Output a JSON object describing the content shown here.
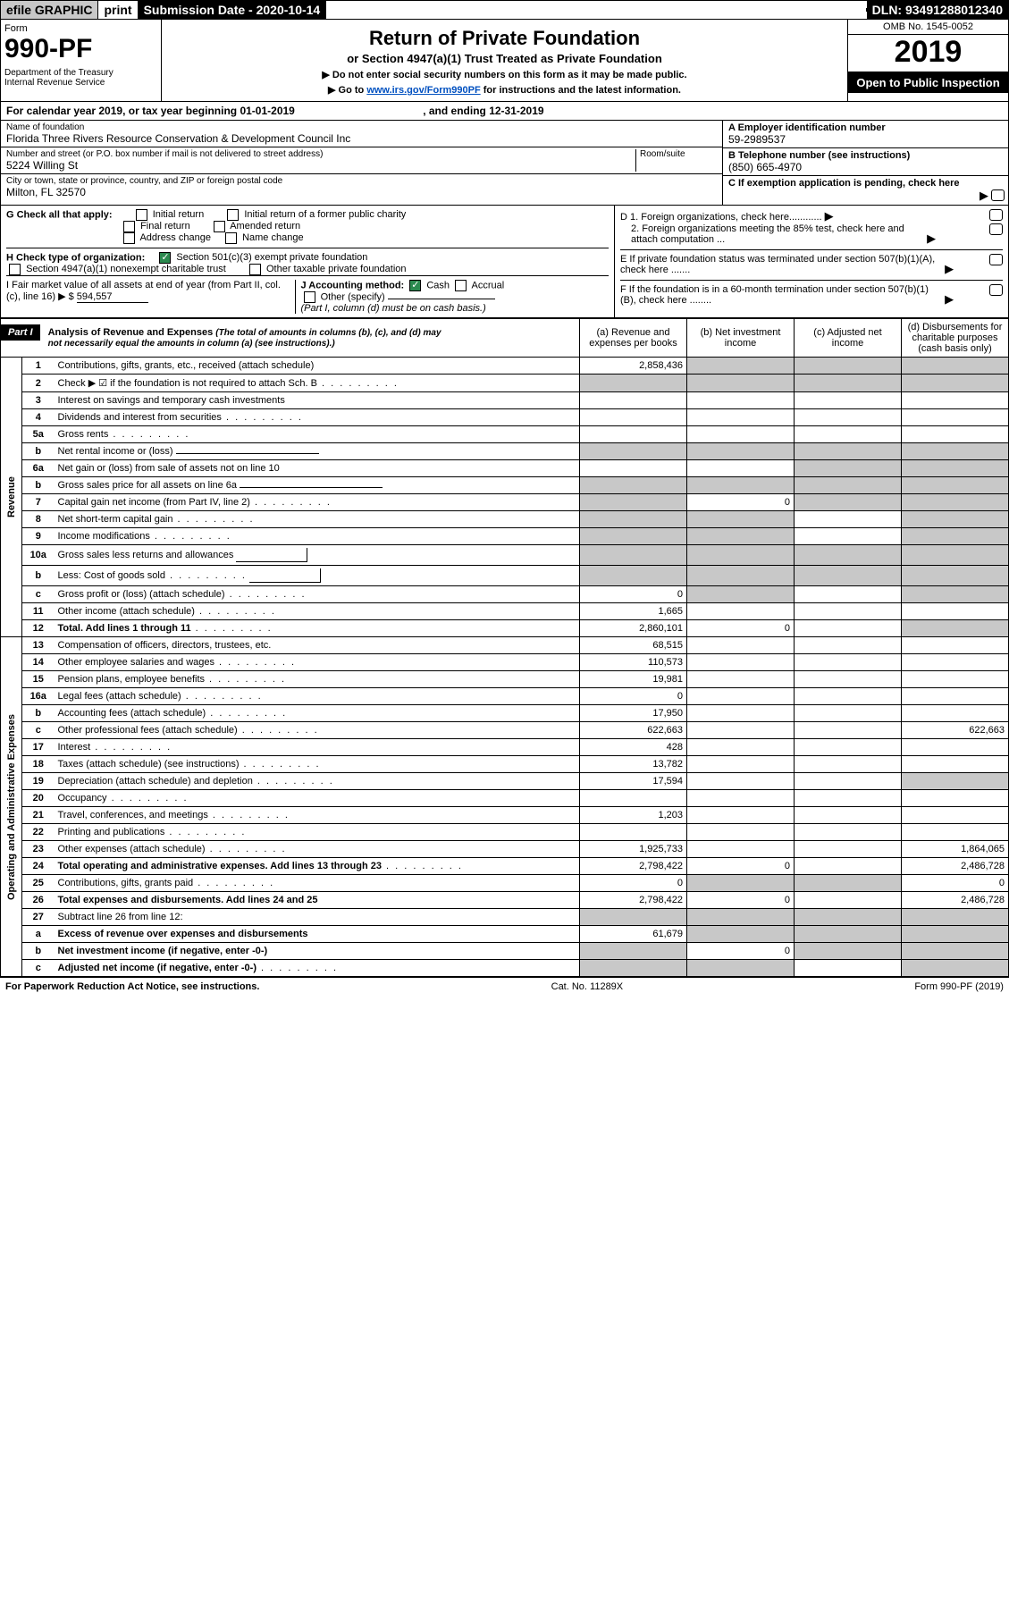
{
  "topbar": {
    "efile": "efile GRAPHIC",
    "print": "print",
    "subdate_label": "Submission Date - 2020-10-14",
    "dln": "DLN: 93491288012340"
  },
  "header": {
    "form_label": "Form",
    "form_num": "990-PF",
    "dept": "Department of the Treasury\nInternal Revenue Service",
    "title": "Return of Private Foundation",
    "subtitle": "or Section 4947(a)(1) Trust Treated as Private Foundation",
    "note1": "▶ Do not enter social security numbers on this form as it may be made public.",
    "note2_pre": "▶ Go to ",
    "note2_link": "www.irs.gov/Form990PF",
    "note2_post": " for instructions and the latest information.",
    "omb": "OMB No. 1545-0052",
    "year": "2019",
    "open": "Open to Public Inspection"
  },
  "calendar": {
    "pre": "For calendar year 2019, or tax year beginning ",
    "begin": "01-01-2019",
    "mid": " , and ending ",
    "end": "12-31-2019"
  },
  "info": {
    "name_label": "Name of foundation",
    "name": "Florida Three Rivers Resource Conservation & Development Council Inc",
    "addr_label": "Number and street (or P.O. box number if mail is not delivered to street address)",
    "addr": "5224 Willing St",
    "room_label": "Room/suite",
    "city_label": "City or town, state or province, country, and ZIP or foreign postal code",
    "city": "Milton, FL  32570",
    "ein_label": "A Employer identification number",
    "ein": "59-2989537",
    "phone_label": "B Telephone number (see instructions)",
    "phone": "(850) 665-4970",
    "c_label": "C If exemption application is pending, check here"
  },
  "checks": {
    "g_label": "G Check all that apply:",
    "g_opts": [
      "Initial return",
      "Initial return of a former public charity",
      "Final return",
      "Amended return",
      "Address change",
      "Name change"
    ],
    "h_label": "H Check type of organization:",
    "h_opt1": "Section 501(c)(3) exempt private foundation",
    "h_opt2": "Section 4947(a)(1) nonexempt charitable trust",
    "h_opt3": "Other taxable private foundation",
    "i_label": "I Fair market value of all assets at end of year (from Part II, col. (c), line 16) ▶ $",
    "i_val": "594,557",
    "j_label": "J Accounting method:",
    "j_cash": "Cash",
    "j_accrual": "Accrual",
    "j_other": "Other (specify)",
    "j_note": "(Part I, column (d) must be on cash basis.)",
    "d1": "D 1. Foreign organizations, check here............",
    "d2": "2. Foreign organizations meeting the 85% test, check here and attach computation ...",
    "e": "E If private foundation status was terminated under section 507(b)(1)(A), check here .......",
    "f": "F If the foundation is in a 60-month termination under section 507(b)(1)(B), check here ........"
  },
  "part1": {
    "label": "Part I",
    "title": "Analysis of Revenue and Expenses",
    "title_note": "(The total of amounts in columns (b), (c), and (d) may not necessarily equal the amounts in column (a) (see instructions).)",
    "cols": {
      "a": "(a) Revenue and expenses per books",
      "b": "(b) Net investment income",
      "c": "(c) Adjusted net income",
      "d": "(d) Disbursements for charitable purposes (cash basis only)"
    }
  },
  "sections": {
    "revenue": "Revenue",
    "expenses": "Operating and Administrative Expenses"
  },
  "rows": [
    {
      "n": "1",
      "desc": "Contributions, gifts, grants, etc., received (attach schedule)",
      "a": "2,858,436",
      "b_shade": true,
      "c_shade": true,
      "d_shade": true
    },
    {
      "n": "2",
      "desc": "Check ▶ ☑ if the foundation is not required to attach Sch. B",
      "dots": true,
      "a_shade": true,
      "b_shade": true,
      "c_shade": true,
      "d_shade": true
    },
    {
      "n": "3",
      "desc": "Interest on savings and temporary cash investments"
    },
    {
      "n": "4",
      "desc": "Dividends and interest from securities",
      "dots": true
    },
    {
      "n": "5a",
      "desc": "Gross rents",
      "dots": true
    },
    {
      "n": "b",
      "desc": "Net rental income or (loss)",
      "has_line": true,
      "a_shade": true,
      "b_shade": true,
      "c_shade": true,
      "d_shade": true
    },
    {
      "n": "6a",
      "desc": "Net gain or (loss) from sale of assets not on line 10",
      "c_shade": true,
      "d_shade": true
    },
    {
      "n": "b",
      "desc": "Gross sales price for all assets on line 6a",
      "has_line": true,
      "a_shade": true,
      "b_shade": true,
      "c_shade": true,
      "d_shade": true
    },
    {
      "n": "7",
      "desc": "Capital gain net income (from Part IV, line 2)",
      "dots": true,
      "a_shade": true,
      "b": "0",
      "c_shade": true,
      "d_shade": true
    },
    {
      "n": "8",
      "desc": "Net short-term capital gain",
      "dots": true,
      "a_shade": true,
      "b_shade": true,
      "d_shade": true
    },
    {
      "n": "9",
      "desc": "Income modifications",
      "dots": true,
      "a_shade": true,
      "b_shade": true,
      "d_shade": true
    },
    {
      "n": "10a",
      "desc": "Gross sales less returns and allowances",
      "has_box": true,
      "a_shade": true,
      "b_shade": true,
      "c_shade": true,
      "d_shade": true
    },
    {
      "n": "b",
      "desc": "Less: Cost of goods sold",
      "dots": true,
      "has_box": true,
      "a_shade": true,
      "b_shade": true,
      "c_shade": true,
      "d_shade": true
    },
    {
      "n": "c",
      "desc": "Gross profit or (loss) (attach schedule)",
      "dots": true,
      "a": "0",
      "b_shade": true,
      "d_shade": true
    },
    {
      "n": "11",
      "desc": "Other income (attach schedule)",
      "dots": true,
      "a": "1,665"
    },
    {
      "n": "12",
      "desc": "Total. Add lines 1 through 11",
      "dots": true,
      "bold": true,
      "a": "2,860,101",
      "b": "0",
      "d_shade": true
    },
    {
      "n": "13",
      "desc": "Compensation of officers, directors, trustees, etc.",
      "a": "68,515"
    },
    {
      "n": "14",
      "desc": "Other employee salaries and wages",
      "dots": true,
      "a": "110,573"
    },
    {
      "n": "15",
      "desc": "Pension plans, employee benefits",
      "dots": true,
      "a": "19,981"
    },
    {
      "n": "16a",
      "desc": "Legal fees (attach schedule)",
      "dots": true,
      "a": "0"
    },
    {
      "n": "b",
      "desc": "Accounting fees (attach schedule)",
      "dots": true,
      "a": "17,950"
    },
    {
      "n": "c",
      "desc": "Other professional fees (attach schedule)",
      "dots": true,
      "a": "622,663",
      "d": "622,663"
    },
    {
      "n": "17",
      "desc": "Interest",
      "dots": true,
      "a": "428"
    },
    {
      "n": "18",
      "desc": "Taxes (attach schedule) (see instructions)",
      "dots": true,
      "a": "13,782"
    },
    {
      "n": "19",
      "desc": "Depreciation (attach schedule) and depletion",
      "dots": true,
      "a": "17,594",
      "d_shade": true
    },
    {
      "n": "20",
      "desc": "Occupancy",
      "dots": true
    },
    {
      "n": "21",
      "desc": "Travel, conferences, and meetings",
      "dots": true,
      "a": "1,203"
    },
    {
      "n": "22",
      "desc": "Printing and publications",
      "dots": true
    },
    {
      "n": "23",
      "desc": "Other expenses (attach schedule)",
      "dots": true,
      "a": "1,925,733",
      "d": "1,864,065"
    },
    {
      "n": "24",
      "desc": "Total operating and administrative expenses. Add lines 13 through 23",
      "dots": true,
      "bold": true,
      "a": "2,798,422",
      "b": "0",
      "d": "2,486,728"
    },
    {
      "n": "25",
      "desc": "Contributions, gifts, grants paid",
      "dots": true,
      "a": "0",
      "b_shade": true,
      "c_shade": true,
      "d": "0"
    },
    {
      "n": "26",
      "desc": "Total expenses and disbursements. Add lines 24 and 25",
      "bold": true,
      "a": "2,798,422",
      "b": "0",
      "d": "2,486,728"
    },
    {
      "n": "27",
      "desc": "Subtract line 26 from line 12:",
      "a_shade": true,
      "b_shade": true,
      "c_shade": true,
      "d_shade": true
    },
    {
      "n": "a",
      "desc": "Excess of revenue over expenses and disbursements",
      "bold": true,
      "a": "61,679",
      "b_shade": true,
      "c_shade": true,
      "d_shade": true
    },
    {
      "n": "b",
      "desc": "Net investment income (if negative, enter -0-)",
      "bold": true,
      "a_shade": true,
      "b": "0",
      "c_shade": true,
      "d_shade": true
    },
    {
      "n": "c",
      "desc": "Adjusted net income (if negative, enter -0-)",
      "bold": true,
      "dots": true,
      "a_shade": true,
      "b_shade": true,
      "d_shade": true
    }
  ],
  "revenue_rowcount": 16,
  "footer": {
    "left": "For Paperwork Reduction Act Notice, see instructions.",
    "mid": "Cat. No. 11289X",
    "right": "Form 990-PF (2019)"
  }
}
